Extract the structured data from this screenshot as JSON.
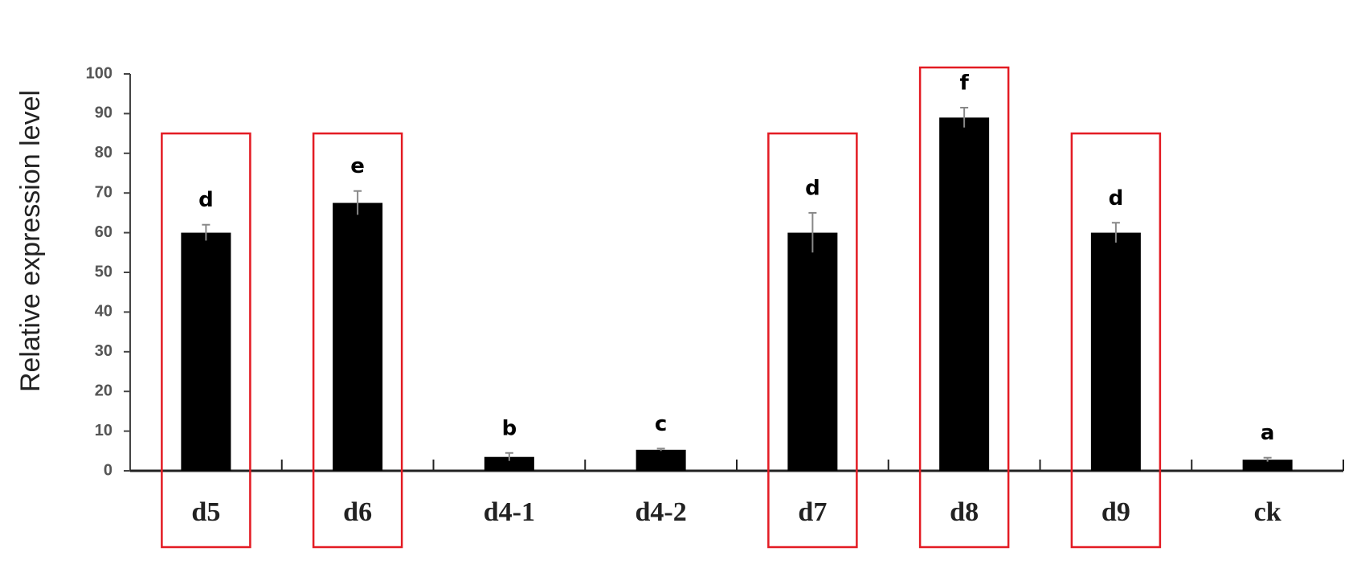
{
  "chart_data": {
    "type": "bar",
    "y_label": "Relative expression  level",
    "categories": [
      "d5",
      "d6",
      "d4-1",
      "d4-2",
      "d7",
      "d8",
      "d9",
      "ck"
    ],
    "values": [
      60,
      67.5,
      3.5,
      5.3,
      60,
      89,
      60,
      2.8
    ],
    "errors": [
      2,
      3,
      1,
      0.3,
      5,
      2.5,
      2.5,
      0.5
    ],
    "letters": [
      "d",
      "e",
      "b",
      "c",
      "d",
      "f",
      "d",
      "a"
    ],
    "highlight": [
      true,
      true,
      false,
      false,
      true,
      true,
      true,
      false
    ],
    "color": "#000000",
    "highlight_color": "#e31b23",
    "ylim": [
      0,
      100
    ],
    "yticks": [
      0,
      10,
      20,
      30,
      40,
      50,
      60,
      70,
      80,
      90,
      100
    ]
  }
}
